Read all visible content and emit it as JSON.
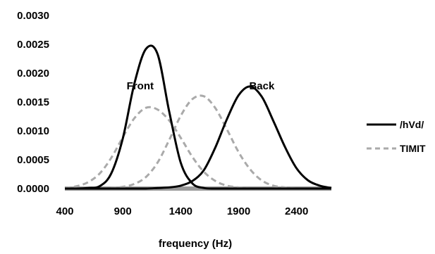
{
  "chart_data": {
    "type": "line",
    "title": "",
    "xlabel": "frequency (Hz)",
    "ylabel": "",
    "xlim": [
      400,
      2700
    ],
    "ylim": [
      0,
      0.003
    ],
    "x_ticks": [
      400,
      900,
      1400,
      1900,
      2400
    ],
    "x_tick_labels": [
      "400",
      "900",
      "1400",
      "1900",
      "2400"
    ],
    "y_ticks": [
      0,
      0.0005,
      0.001,
      0.0015,
      0.002,
      0.0025,
      0.003
    ],
    "y_tick_labels": [
      "0.0000",
      "0.0005",
      "0.0010",
      "0.0015",
      "0.0020",
      "0.0025",
      "0.0030"
    ],
    "grid": false,
    "legend_position": "right",
    "x": [
      400,
      500,
      600,
      700,
      800,
      900,
      1000,
      1100,
      1200,
      1300,
      1400,
      1500,
      1600,
      1700,
      1800,
      1900,
      2000,
      2100,
      2200,
      2300,
      2400,
      2500,
      2600,
      2700
    ],
    "series": [
      {
        "name": "/hVd/",
        "group": "Front",
        "color": "#000000",
        "dash": "solid",
        "values": [
          0,
          0,
          1e-05,
          4e-05,
          0.00026,
          0.00087,
          0.00182,
          0.00242,
          0.00233,
          0.00134,
          0.00045,
          9e-05,
          1e-05,
          0,
          0,
          0,
          0,
          0,
          0,
          0,
          0,
          0,
          0,
          0
        ]
      },
      {
        "name": "/hVd/",
        "group": "Back",
        "color": "#000000",
        "dash": "solid",
        "values": [
          0,
          0,
          0,
          0,
          0,
          0,
          0,
          0,
          1e-05,
          2e-05,
          5e-05,
          0.00013,
          0.00032,
          0.00072,
          0.00121,
          0.00162,
          0.00177,
          0.00159,
          0.00117,
          0.00072,
          0.00035,
          0.00014,
          5e-05,
          1e-05
        ]
      },
      {
        "name": "TIMIT",
        "group": "Front",
        "color": "#aaaaaa",
        "dash": "dashed",
        "values": [
          1e-05,
          4e-05,
          0.00011,
          0.00026,
          0.00053,
          0.00089,
          0.00122,
          0.0014,
          0.00137,
          0.00118,
          0.00088,
          0.00055,
          0.00029,
          0.00013,
          5e-05,
          2e-05,
          0,
          0,
          0,
          0,
          0,
          0,
          0,
          0
        ]
      },
      {
        "name": "TIMIT",
        "group": "Back",
        "color": "#aaaaaa",
        "dash": "dashed",
        "values": [
          0,
          0,
          0,
          0,
          1e-05,
          3e-05,
          8e-05,
          0.0002,
          0.00045,
          0.00084,
          0.00126,
          0.00155,
          0.0016,
          0.00139,
          0.00102,
          0.00063,
          0.00033,
          0.00014,
          5e-05,
          2e-05,
          0,
          0,
          0,
          0
        ]
      }
    ],
    "annotations": [
      {
        "text": "Front",
        "x": 1050,
        "y": 0.0015
      },
      {
        "text": "Back",
        "x": 2100,
        "y": 0.0015
      }
    ],
    "legend": [
      {
        "label": "/hVd/",
        "color": "#000000",
        "dash": "solid"
      },
      {
        "label": "TIMIT",
        "color": "#aaaaaa",
        "dash": "dashed"
      }
    ]
  }
}
